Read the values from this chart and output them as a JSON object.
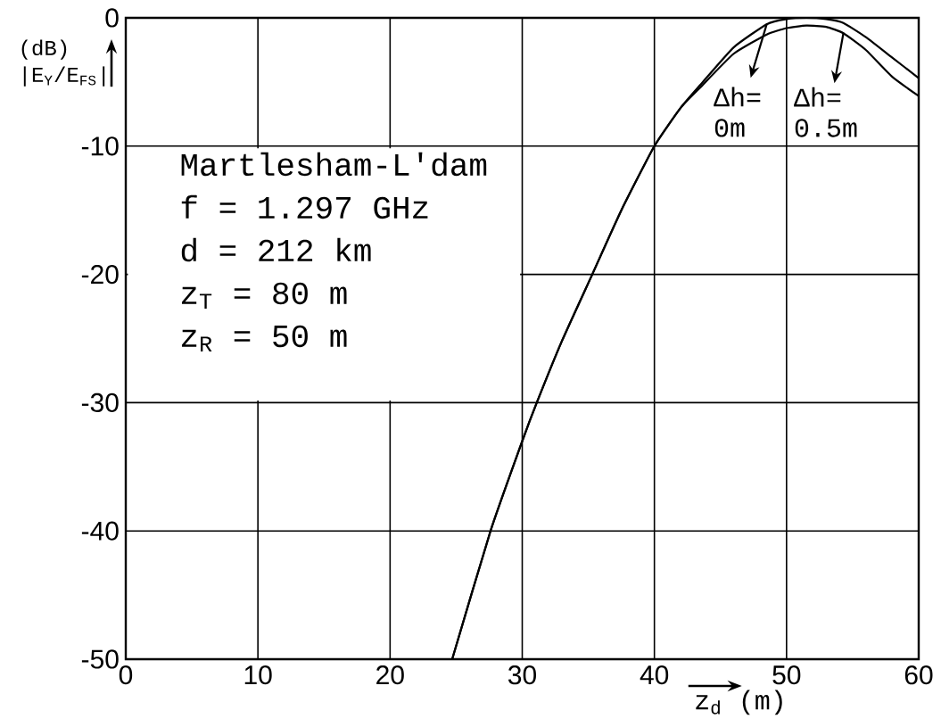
{
  "chart_data": {
    "type": "line",
    "xlabel": "z$_{d}$ (m)",
    "ylabel": "(dB) |E$_{Y}$/E$_{FS}$|",
    "x": [
      24.7,
      27.6,
      30,
      31.1,
      33,
      35.3,
      37.5,
      40,
      42,
      43.5,
      46,
      48.5,
      50,
      51.5,
      53,
      54.3,
      56,
      58,
      60
    ],
    "series": [
      {
        "name": "Δh= 0m",
        "color": "#000000",
        "values": [
          -50,
          -40,
          -33,
          -30,
          -25.2,
          -20,
          -15,
          -10,
          -7,
          -5.2,
          -2.3,
          -0.5,
          -0.1,
          0,
          -0.1,
          -0.4,
          -1.5,
          -3.1,
          -4.7
        ]
      },
      {
        "name": "Δh= 0.5m",
        "color": "#000000",
        "values": [
          -50,
          -40,
          -33,
          -30,
          -25.2,
          -20,
          -15,
          -10,
          -7,
          -5.4,
          -2.8,
          -1.3,
          -0.8,
          -0.6,
          -0.7,
          -1.2,
          -2.5,
          -4.6,
          -6.1
        ]
      }
    ],
    "xlim": [
      0,
      60
    ],
    "ylim": [
      -50,
      0
    ],
    "xticks": [
      0,
      10,
      20,
      30,
      40,
      50,
      60
    ],
    "yticks": [
      -50,
      -40,
      -30,
      -20,
      -10,
      0
    ],
    "annotations": [
      "Martlesham-L'dam",
      "f = 1.297 GHz",
      "d = 212 km",
      "z$_{T}$ = 80 m",
      "z$_{R}$ = 50 m"
    ],
    "grid": true,
    "legend": "top right",
    "marker": "none",
    "line_style": "solid"
  }
}
